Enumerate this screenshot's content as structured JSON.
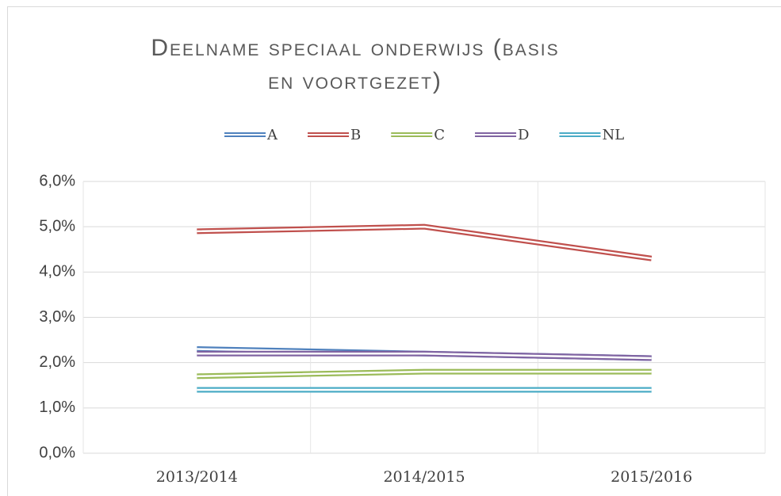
{
  "chart_data": {
    "type": "line",
    "title": "Deelname speciaal onderwijs (basis en voortgezet)",
    "categories": [
      "2013/2014",
      "2014/2015",
      "2015/2016"
    ],
    "series": [
      {
        "name": "A",
        "color": "#4f81bd",
        "values": [
          2.3,
          2.2,
          2.1
        ]
      },
      {
        "name": "B",
        "color": "#c0504d",
        "values": [
          4.9,
          5.0,
          4.3
        ]
      },
      {
        "name": "C",
        "color": "#9bbb59",
        "values": [
          1.7,
          1.8,
          1.8
        ]
      },
      {
        "name": "D",
        "color": "#8064a2",
        "values": [
          2.2,
          2.2,
          2.1
        ]
      },
      {
        "name": "NL",
        "color": "#4bacc6",
        "values": [
          1.4,
          1.4,
          1.4
        ]
      }
    ],
    "ylim": [
      0,
      6
    ],
    "yticks": [
      {
        "value": 0,
        "label": "0,0%"
      },
      {
        "value": 1,
        "label": "1,0%"
      },
      {
        "value": 2,
        "label": "2,0%"
      },
      {
        "value": 3,
        "label": "3,0%"
      },
      {
        "value": 4,
        "label": "4,0%"
      },
      {
        "value": 5,
        "label": "5,0%"
      },
      {
        "value": 6,
        "label": "6,0%"
      }
    ],
    "grid": true,
    "legend": "top"
  }
}
